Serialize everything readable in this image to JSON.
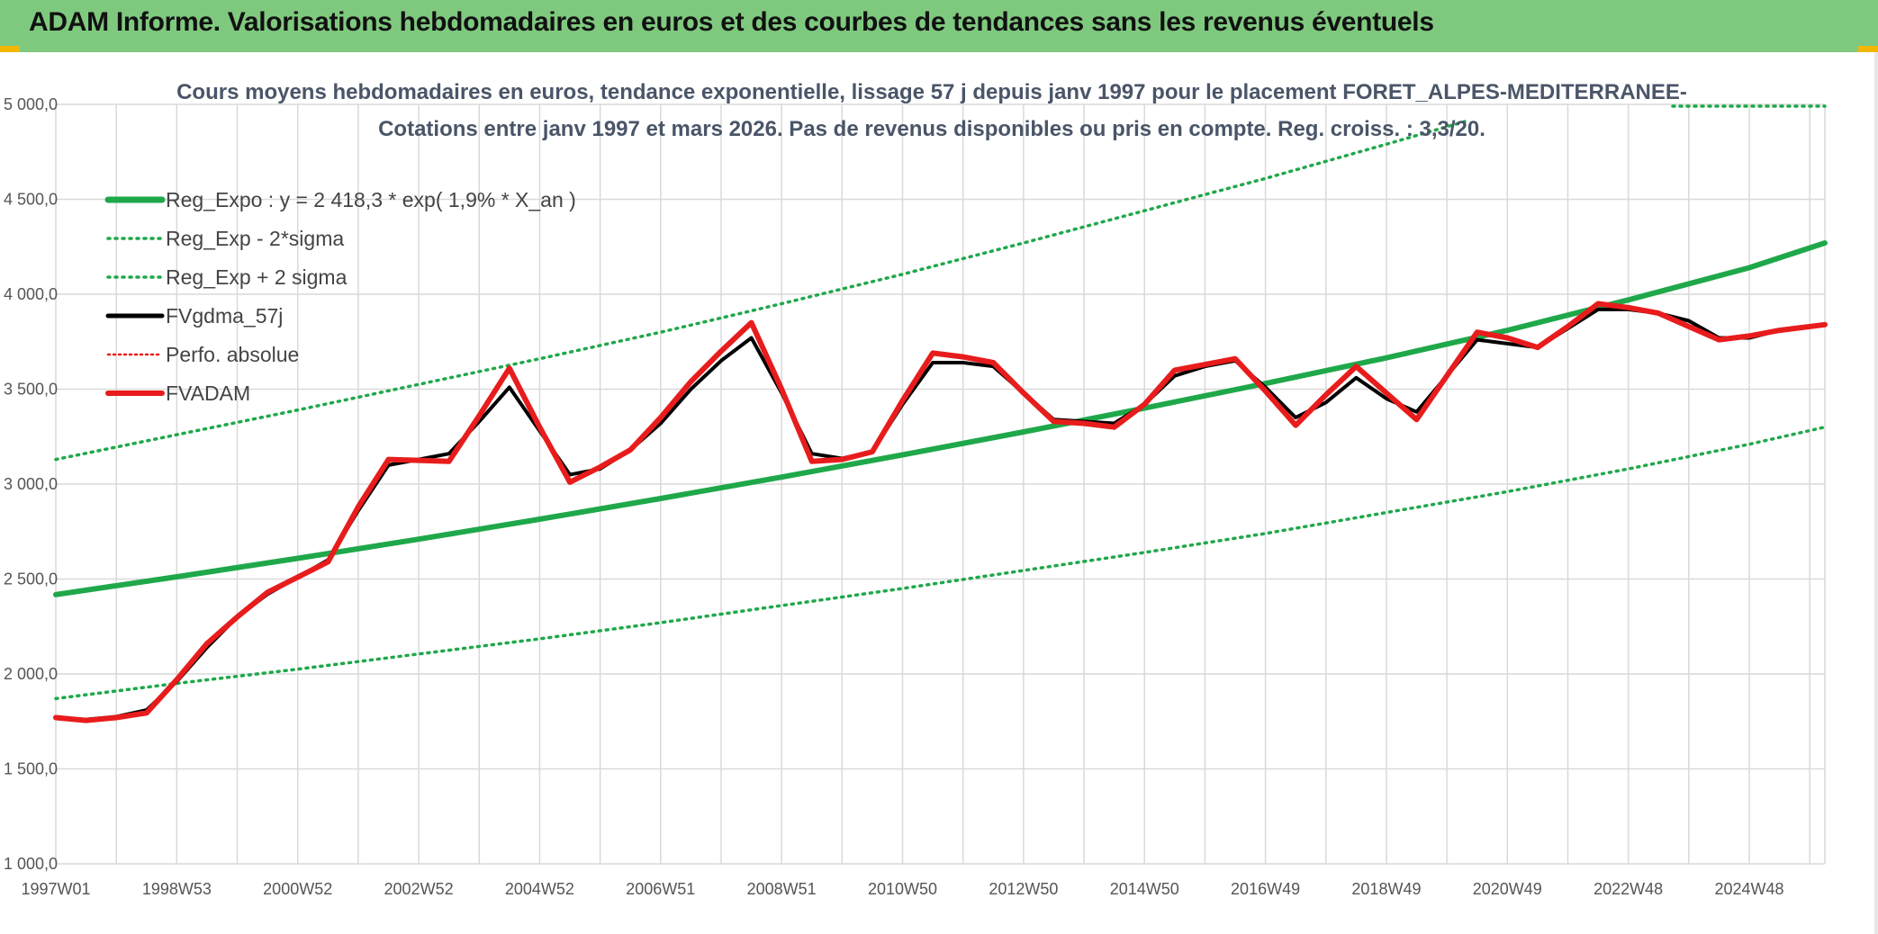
{
  "header": {
    "title": "ADAM Informe. Valorisations hebdomadaires en euros et des courbes de tendances sans les revenus éventuels"
  },
  "colors": {
    "banner": "#7fc97f",
    "accent_corner": "#f2b705",
    "reg_expo": "#1fa84a",
    "sigma": "#1fa84a",
    "fvgdma": "#000000",
    "perfo": "#e81c1c",
    "fvadam": "#e81c1c",
    "grid": "#d9d9d9"
  },
  "chart_data": {
    "type": "line",
    "title_lines": [
      "Cours moyens hebdomadaires en euros, tendance exponentielle, lissage 57 j depuis janv 1997 pour le placement FORET_ALPES-MEDITERRANEE-",
      "Cotations entre janv 1997 et mars 2026. Pas de revenus disponibles ou pris en compte. Reg. croiss. : 3,3/20."
    ],
    "xlim": [
      1997.0,
      2026.25
    ],
    "ylim": [
      1000,
      5000
    ],
    "y_ticks": [
      1000,
      1500,
      2000,
      2500,
      3000,
      3500,
      4000,
      4500,
      5000
    ],
    "y_tick_labels": [
      "1 000,0",
      "1 500,0",
      "2 000,0",
      "2 500,0",
      "3 000,0",
      "3 500,0",
      "4 000,0",
      "4 500,0",
      "5 000,0"
    ],
    "x_tick_labels": [
      {
        "x": 1997.0,
        "label": "1997W01"
      },
      {
        "x": 1999.0,
        "label": "1998W53"
      },
      {
        "x": 2001.0,
        "label": "2000W52"
      },
      {
        "x": 2003.0,
        "label": "2002W52"
      },
      {
        "x": 2005.0,
        "label": "2004W52"
      },
      {
        "x": 2007.0,
        "label": "2006W51"
      },
      {
        "x": 2009.0,
        "label": "2008W51"
      },
      {
        "x": 2011.0,
        "label": "2010W50"
      },
      {
        "x": 2013.0,
        "label": "2012W50"
      },
      {
        "x": 2015.0,
        "label": "2014W50"
      },
      {
        "x": 2017.0,
        "label": "2016W49"
      },
      {
        "x": 2019.0,
        "label": "2018W49"
      },
      {
        "x": 2021.0,
        "label": "2020W49"
      },
      {
        "x": 2023.0,
        "label": "2022W48"
      },
      {
        "x": 2025.0,
        "label": "2024W48"
      }
    ],
    "grid": true,
    "legend_position": "top-left",
    "series": [
      {
        "name": "Reg_Expo : y = 2 418,3 * exp( 1,9% *  X_an )",
        "style": "solid-thick",
        "color": "#1fa84a",
        "x": [
          1997.0,
          1999.0,
          2001.0,
          2003.0,
          2005.0,
          2007.0,
          2009.0,
          2011.0,
          2013.0,
          2015.0,
          2017.0,
          2019.0,
          2021.0,
          2023.0,
          2025.0,
          2026.25
        ],
        "y": [
          2418,
          2512,
          2609,
          2710,
          2815,
          2924,
          3037,
          3154,
          3275,
          3400,
          3530,
          3665,
          3810,
          3970,
          4140,
          4270
        ]
      },
      {
        "name": "Reg_Exp - 2*sigma",
        "style": "dotted",
        "color": "#1fa84a",
        "x": [
          1997.0,
          1999.0,
          2001.0,
          2003.0,
          2005.0,
          2007.0,
          2009.0,
          2011.0,
          2013.0,
          2015.0,
          2017.0,
          2019.0,
          2021.0,
          2023.0,
          2025.0,
          2026.25
        ],
        "y": [
          1870,
          1950,
          2025,
          2105,
          2185,
          2270,
          2360,
          2450,
          2545,
          2640,
          2740,
          2850,
          2960,
          3080,
          3210,
          3300
        ]
      },
      {
        "name": "Reg_Exp + 2 sigma",
        "style": "dotted",
        "color": "#1fa84a",
        "x": [
          1997.0,
          1999.0,
          2001.0,
          2003.0,
          2005.0,
          2007.0,
          2009.0,
          2011.0,
          2013.0,
          2015.0,
          2017.0,
          2019.0,
          2020.3
        ],
        "y": [
          3130,
          3260,
          3390,
          3525,
          3660,
          3800,
          3950,
          4105,
          4270,
          4440,
          4610,
          4790,
          4910
        ]
      },
      {
        "name": "FVgdma_57j",
        "style": "solid",
        "color": "#000000",
        "x": [
          1997.0,
          1997.5,
          1998.0,
          1998.5,
          1999.0,
          1999.5,
          2000.0,
          2000.5,
          2001.0,
          2001.5,
          2002.0,
          2002.5,
          2003.0,
          2003.5,
          2004.0,
          2004.5,
          2005.0,
          2005.5,
          2006.0,
          2006.5,
          2007.0,
          2007.5,
          2008.0,
          2008.5,
          2009.0,
          2009.5,
          2010.0,
          2010.5,
          2011.0,
          2011.5,
          2012.0,
          2012.5,
          2013.0,
          2013.5,
          2014.0,
          2014.5,
          2015.0,
          2015.5,
          2016.0,
          2016.5,
          2017.0,
          2017.5,
          2018.0,
          2018.5,
          2019.0,
          2019.5,
          2020.0,
          2020.5,
          2021.0,
          2021.5,
          2022.0,
          2022.5,
          2023.0,
          2023.5,
          2024.0,
          2024.5,
          2025.0,
          2025.5,
          2026.25
        ],
        "y": [
          1770,
          1760,
          1775,
          1810,
          1960,
          2140,
          2300,
          2420,
          2510,
          2600,
          2860,
          3100,
          3130,
          3160,
          3330,
          3510,
          3280,
          3050,
          3080,
          3180,
          3320,
          3500,
          3650,
          3770,
          3480,
          3160,
          3135,
          3170,
          3420,
          3640,
          3640,
          3620,
          3480,
          3340,
          3330,
          3320,
          3420,
          3570,
          3620,
          3650,
          3510,
          3350,
          3430,
          3560,
          3450,
          3380,
          3570,
          3760,
          3740,
          3720,
          3820,
          3920,
          3920,
          3900,
          3860,
          3770,
          3770,
          3810,
          3840
        ]
      },
      {
        "name": "Perfo. absolue",
        "style": "dotted",
        "color": "#e81c1c",
        "x": [],
        "y": []
      },
      {
        "name": "FVADAM",
        "style": "solid-thick",
        "color": "#e81c1c",
        "x": [
          1997.0,
          1997.5,
          1998.0,
          1998.5,
          1999.0,
          1999.5,
          2000.0,
          2000.5,
          2001.0,
          2001.5,
          2002.0,
          2002.5,
          2003.0,
          2003.5,
          2004.0,
          2004.5,
          2005.0,
          2005.5,
          2006.0,
          2006.5,
          2007.0,
          2007.5,
          2008.0,
          2008.5,
          2009.0,
          2009.5,
          2010.0,
          2010.5,
          2011.0,
          2011.5,
          2012.0,
          2012.5,
          2013.0,
          2013.5,
          2014.0,
          2014.5,
          2015.0,
          2015.5,
          2016.0,
          2016.5,
          2017.0,
          2017.5,
          2018.0,
          2018.5,
          2019.0,
          2019.5,
          2020.0,
          2020.5,
          2021.0,
          2021.5,
          2022.0,
          2022.5,
          2023.0,
          2023.5,
          2024.0,
          2024.5,
          2025.0,
          2025.5,
          2026.25
        ],
        "y": [
          1770,
          1755,
          1770,
          1795,
          1970,
          2160,
          2300,
          2430,
          2510,
          2590,
          2880,
          3130,
          3125,
          3120,
          3360,
          3610,
          3300,
          3010,
          3090,
          3180,
          3350,
          3540,
          3700,
          3850,
          3500,
          3120,
          3130,
          3170,
          3440,
          3690,
          3670,
          3640,
          3480,
          3330,
          3320,
          3300,
          3420,
          3600,
          3630,
          3660,
          3490,
          3310,
          3470,
          3620,
          3480,
          3340,
          3570,
          3800,
          3770,
          3720,
          3830,
          3950,
          3930,
          3900,
          3830,
          3760,
          3780,
          3810,
          3840
        ]
      }
    ]
  }
}
